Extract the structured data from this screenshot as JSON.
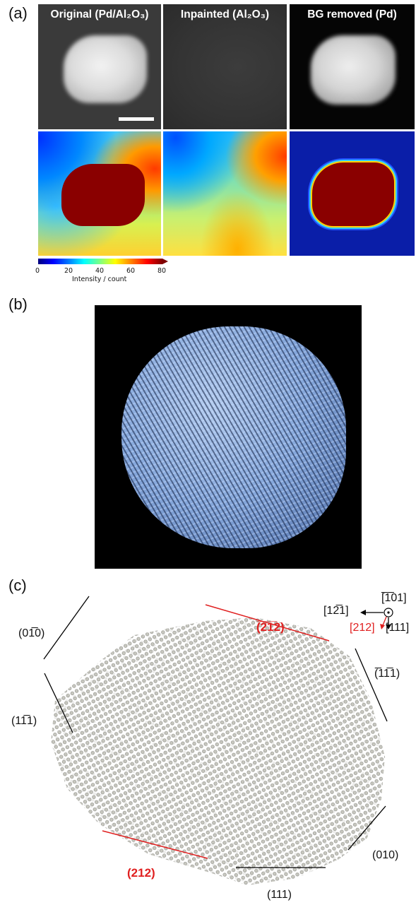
{
  "panels": {
    "a": "(a)",
    "b": "(b)",
    "c": "(c)"
  },
  "panel_a": {
    "titles": [
      "Original (Pd/Al₂O₃)",
      "Inpainted (Al₂O₃)",
      "BG removed (Pd)"
    ],
    "colorbar": {
      "ticks": [
        "0",
        "20",
        "40",
        "60",
        "80"
      ],
      "label": "Intensity / count"
    }
  },
  "panel_c": {
    "axes": {
      "top": "[̅1̅01]",
      "left": "[12̅1]",
      "red": "[212]",
      "bottom": "[111]"
    },
    "facets": {
      "top_red": "(̅2̅1̅2)",
      "upper_left": "(01̅0)",
      "right": "(̅11̅1)",
      "left": "(11̅1)",
      "bottom_right": "(010)",
      "bottom_red": "(212)",
      "bottom": "(111)"
    }
  },
  "colors": {
    "red": "#e02020",
    "black": "#000000"
  }
}
